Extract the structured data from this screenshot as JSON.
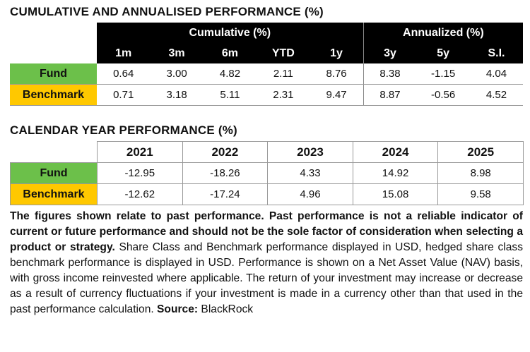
{
  "cumulative": {
    "title": "CUMULATIVE AND ANNUALISED PERFORMANCE (%)",
    "group_cumulative": "Cumulative (%)",
    "group_annualized": "Annualized (%)",
    "columns": [
      "1m",
      "3m",
      "6m",
      "YTD",
      "1y",
      "3y",
      "5y",
      "S.I."
    ],
    "rows": [
      {
        "label": "Fund",
        "values": [
          "0.64",
          "3.00",
          "4.82",
          "2.11",
          "8.76",
          "8.38",
          "-1.15",
          "4.04"
        ]
      },
      {
        "label": "Benchmark",
        "values": [
          "0.71",
          "3.18",
          "5.11",
          "2.31",
          "9.47",
          "8.87",
          "-0.56",
          "4.52"
        ]
      }
    ]
  },
  "calendar": {
    "title": "CALENDAR YEAR PERFORMANCE (%)",
    "columns": [
      "2021",
      "2022",
      "2023",
      "2024",
      "2025"
    ],
    "rows": [
      {
        "label": "Fund",
        "values": [
          "-12.95",
          "-18.26",
          "4.33",
          "14.92",
          "8.98"
        ]
      },
      {
        "label": "Benchmark",
        "values": [
          "-12.62",
          "-17.24",
          "4.96",
          "15.08",
          "9.58"
        ]
      }
    ]
  },
  "disclaimer": {
    "bold": "The figures shown relate to past performance. Past performance is not a reliable indicator of current or future performance and should not be the sole factor of consideration when selecting a product or strategy.",
    "body": " Share Class and Benchmark performance displayed in USD, hedged share class benchmark performance is displayed in USD. Performance is shown on a Net Asset Value (NAV) basis, with gross income reinvested where applicable. The return of your investment may increase or decrease as a result of currency fluctuations if your investment is made in a currency other than that used in the past performance calculation. ",
    "source_label": "Source:",
    "source": " BlackRock"
  },
  "colors": {
    "fund": "#6cc04a",
    "benchmark": "#ffc800",
    "header": "#000000"
  }
}
